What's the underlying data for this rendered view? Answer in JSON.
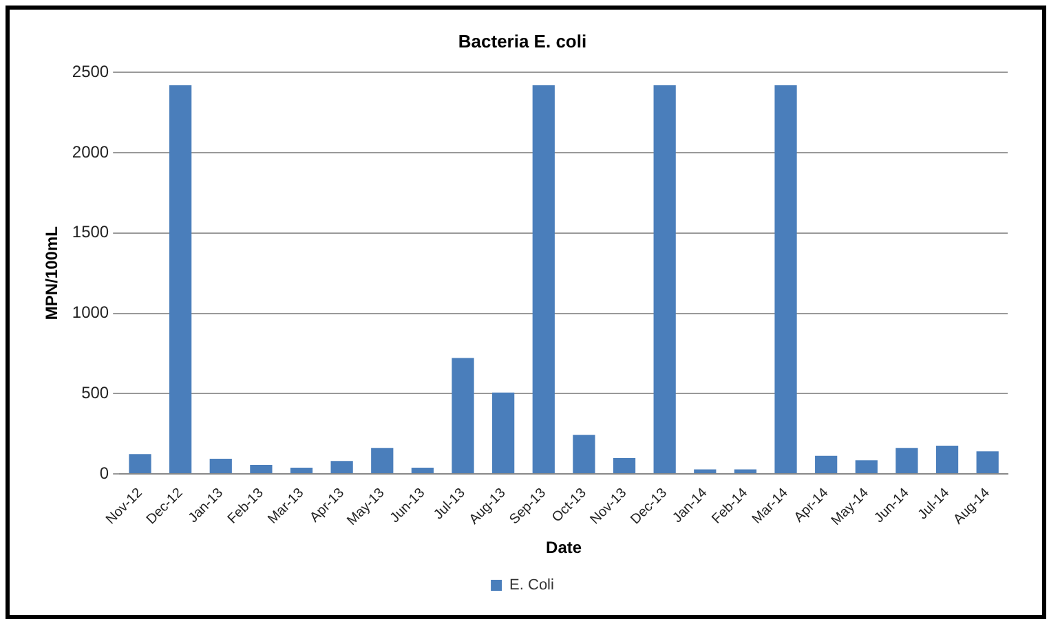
{
  "chart_data": {
    "type": "bar",
    "title": "Bacteria E. coli",
    "xlabel": "Date",
    "ylabel": "MPN/100mL",
    "categories": [
      "Nov-12",
      "Dec-12",
      "Jan-13",
      "Feb-13",
      "Mar-13",
      "Apr-13",
      "May-13",
      "Jun-13",
      "Jul-13",
      "Aug-13",
      "Sep-13",
      "Oct-13",
      "Nov-13",
      "Dec-13",
      "Jan-14",
      "Feb-14",
      "Mar-14",
      "Apr-14",
      "May-14",
      "Jun-14",
      "Jul-14",
      "Aug-14"
    ],
    "series": [
      {
        "name": "E. Coli",
        "color": "#4a7ebb",
        "values": [
          123,
          2420,
          95,
          56,
          39,
          81,
          162,
          39,
          722,
          507,
          2420,
          243,
          99,
          2420,
          28,
          28,
          2420,
          113,
          85,
          162,
          176,
          141
        ]
      }
    ],
    "ylim": [
      0,
      2500
    ],
    "yticks": [
      0,
      500,
      1000,
      1500,
      2000,
      2500
    ],
    "grid": "y",
    "legend": "bottom"
  }
}
